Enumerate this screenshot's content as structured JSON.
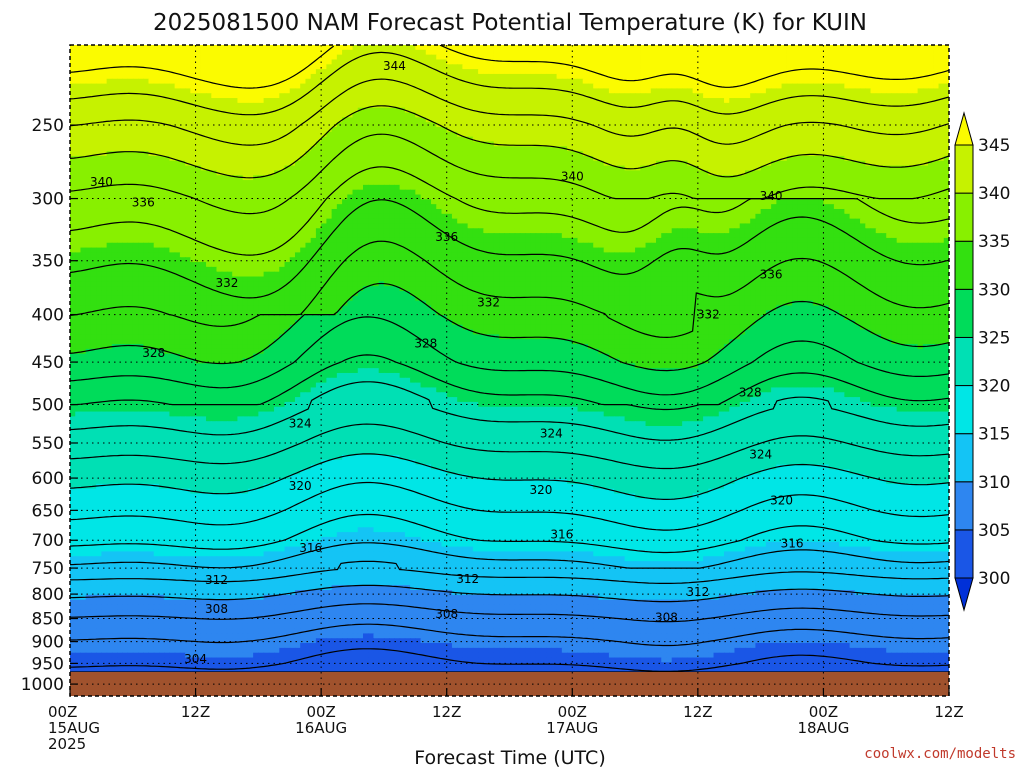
{
  "chart_data": {
    "type": "contour",
    "title": "2025081500 NAM Forecast Potential Temperature (K) for KUIN",
    "xlabel": "Forecast Time (UTC)",
    "ylabel": "",
    "y_scale": "log",
    "y_inverted": true,
    "y_range": [
      1030,
      205
    ],
    "y_ticks": [
      250,
      300,
      350,
      400,
      450,
      500,
      550,
      600,
      650,
      700,
      750,
      800,
      850,
      900,
      950,
      1000
    ],
    "x_range": [
      "2025-08-15T00Z",
      "2025-08-18T12Z"
    ],
    "x_ticks": [
      {
        "hour": 0,
        "lines": [
          "00Z",
          "15AUG",
          "2025"
        ]
      },
      {
        "hour": 12,
        "lines": [
          "12Z"
        ]
      },
      {
        "hour": 24,
        "lines": [
          "00Z",
          "16AUG"
        ]
      },
      {
        "hour": 36,
        "lines": [
          "12Z"
        ]
      },
      {
        "hour": 48,
        "lines": [
          "00Z",
          "17AUG"
        ]
      },
      {
        "hour": 60,
        "lines": [
          "12Z"
        ]
      },
      {
        "hour": 72,
        "lines": [
          "00Z",
          "18AUG"
        ]
      },
      {
        "hour": 84,
        "lines": [
          "12Z"
        ]
      }
    ],
    "grid": true,
    "colorbar": {
      "levels": [
        300,
        305,
        310,
        315,
        320,
        325,
        330,
        335,
        340,
        345
      ],
      "colors": [
        "#0030d8",
        "#1a56e6",
        "#2e86f0",
        "#14c4f5",
        "#00e6e6",
        "#00e0b4",
        "#00dc5a",
        "#33e010",
        "#88f000",
        "#c6f200",
        "#fbfb00"
      ],
      "extend": "both"
    },
    "contour_interval": 2,
    "contour_labels": [
      {
        "value": 344,
        "hour": 31,
        "p": 216
      },
      {
        "value": 340,
        "hour": 3,
        "p": 288
      },
      {
        "value": 340,
        "hour": 48,
        "p": 284
      },
      {
        "value": 340,
        "hour": 67,
        "p": 298
      },
      {
        "value": 336,
        "hour": 7,
        "p": 303
      },
      {
        "value": 336,
        "hour": 36,
        "p": 330
      },
      {
        "value": 336,
        "hour": 67,
        "p": 362
      },
      {
        "value": 332,
        "hour": 15,
        "p": 370
      },
      {
        "value": 332,
        "hour": 40,
        "p": 388
      },
      {
        "value": 332,
        "hour": 61,
        "p": 400
      },
      {
        "value": 328,
        "hour": 8,
        "p": 440
      },
      {
        "value": 328,
        "hour": 34,
        "p": 430
      },
      {
        "value": 328,
        "hour": 65,
        "p": 485
      },
      {
        "value": 324,
        "hour": 22,
        "p": 524
      },
      {
        "value": 324,
        "hour": 46,
        "p": 537
      },
      {
        "value": 324,
        "hour": 66,
        "p": 566
      },
      {
        "value": 320,
        "hour": 22,
        "p": 612
      },
      {
        "value": 320,
        "hour": 45,
        "p": 618
      },
      {
        "value": 320,
        "hour": 68,
        "p": 634
      },
      {
        "value": 316,
        "hour": 23,
        "p": 714
      },
      {
        "value": 316,
        "hour": 47,
        "p": 690
      },
      {
        "value": 316,
        "hour": 69,
        "p": 706
      },
      {
        "value": 312,
        "hour": 14,
        "p": 773
      },
      {
        "value": 312,
        "hour": 38,
        "p": 771
      },
      {
        "value": 312,
        "hour": 60,
        "p": 796
      },
      {
        "value": 308,
        "hour": 14,
        "p": 830
      },
      {
        "value": 308,
        "hour": 36,
        "p": 840
      },
      {
        "value": 308,
        "hour": 57,
        "p": 848
      },
      {
        "value": 304,
        "hour": 12,
        "p": 940
      }
    ],
    "underground_color": "#a0522d"
  },
  "credit": "coolwx.com/modelts"
}
